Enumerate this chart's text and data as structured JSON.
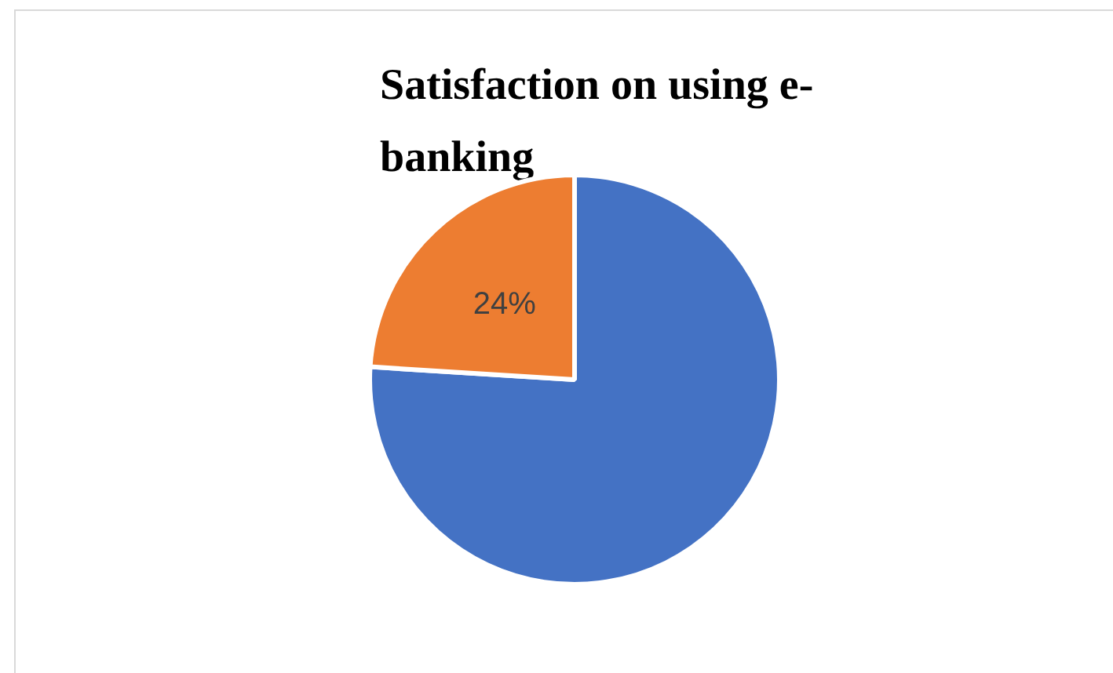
{
  "chart_data": {
    "type": "pie",
    "title": "Satisfaction on using e-banking",
    "categories": [
      null,
      null
    ],
    "values": [
      76,
      24
    ],
    "colors": [
      "#4472c4",
      "#ed7d31"
    ],
    "value_labels": [
      null,
      "24%"
    ],
    "legend": false
  }
}
